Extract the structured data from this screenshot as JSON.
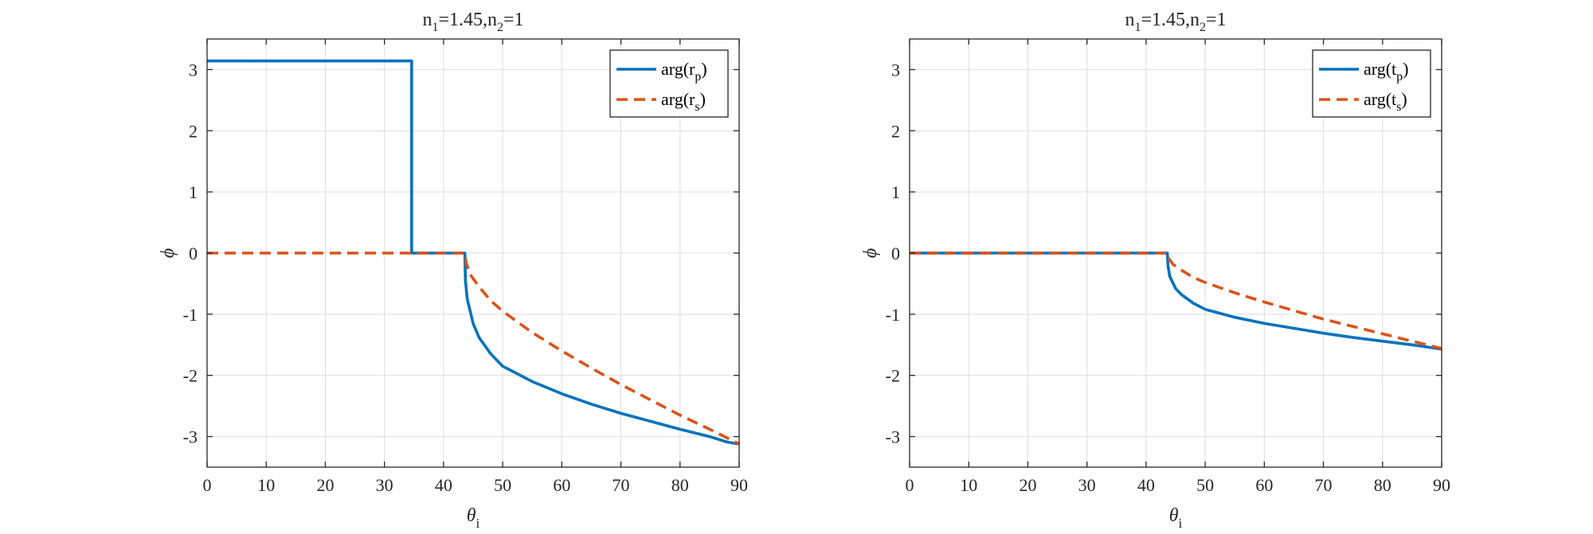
{
  "chart_data": [
    {
      "type": "line",
      "title": "n1=1.45,n2=1",
      "title_parts": {
        "n": "n",
        "sub1": "1",
        "mid": "=1.45,n",
        "sub2": "2",
        "end": "=1"
      },
      "xlabel": {
        "symbol": "θ",
        "subscript": "i"
      },
      "ylabel": "ϕ",
      "xlim": [
        0,
        90
      ],
      "ylim": [
        -3.5,
        3.5
      ],
      "xticks": [
        0,
        10,
        20,
        30,
        40,
        50,
        60,
        70,
        80,
        90
      ],
      "yticks": [
        3,
        2,
        1,
        0,
        -1,
        -2,
        -3
      ],
      "grid": true,
      "legend_position": "top-right",
      "series": [
        {
          "name": "arg(rp)",
          "legend": {
            "main": "arg(r",
            "sub": "p",
            "end": ")"
          },
          "color": "#0072bd",
          "dash": "solid",
          "x": [
            0,
            34.6,
            34.6,
            43.6,
            43.7,
            44.0,
            45.0,
            46.0,
            48.0,
            50.0,
            55.0,
            60.0,
            65.0,
            70.0,
            75.0,
            80.0,
            85.0,
            88.0,
            90.0
          ],
          "y": [
            3.1416,
            3.1416,
            0,
            0,
            -0.45,
            -0.75,
            -1.15,
            -1.38,
            -1.65,
            -1.85,
            -2.1,
            -2.3,
            -2.47,
            -2.62,
            -2.75,
            -2.88,
            -3.0,
            -3.09,
            -3.12
          ]
        },
        {
          "name": "arg(rs)",
          "legend": {
            "main": "arg(r",
            "sub": "s",
            "end": ")"
          },
          "color": "#d95319",
          "dash": "dashed",
          "x": [
            0,
            43.6,
            43.8,
            44.5,
            46.0,
            48.0,
            50.0,
            55.0,
            60.0,
            65.0,
            70.0,
            75.0,
            80.0,
            85.0,
            90.0
          ],
          "y": [
            0,
            0,
            -0.15,
            -0.35,
            -0.55,
            -0.78,
            -0.95,
            -1.3,
            -1.6,
            -1.88,
            -2.15,
            -2.4,
            -2.65,
            -2.88,
            -3.12
          ]
        }
      ]
    },
    {
      "type": "line",
      "title": "n1=1.45,n2=1",
      "title_parts": {
        "n": "n",
        "sub1": "1",
        "mid": "=1.45,n",
        "sub2": "2",
        "end": "=1"
      },
      "xlabel": {
        "symbol": "θ",
        "subscript": "i"
      },
      "ylabel": "ϕ",
      "xlim": [
        0,
        90
      ],
      "ylim": [
        -3.5,
        3.5
      ],
      "xticks": [
        0,
        10,
        20,
        30,
        40,
        50,
        60,
        70,
        80,
        90
      ],
      "yticks": [
        3,
        2,
        1,
        0,
        -1,
        -2,
        -3
      ],
      "grid": true,
      "legend_position": "top-right",
      "series": [
        {
          "name": "arg(tp)",
          "legend": {
            "main": "arg(t",
            "sub": "p",
            "end": ")"
          },
          "color": "#0072bd",
          "dash": "solid",
          "x": [
            0,
            43.6,
            43.7,
            44.0,
            45.0,
            46.0,
            48.0,
            50.0,
            55.0,
            60.0,
            65.0,
            70.0,
            75.0,
            80.0,
            85.0,
            90.0
          ],
          "y": [
            0,
            0,
            -0.2,
            -0.38,
            -0.58,
            -0.68,
            -0.82,
            -0.92,
            -1.05,
            -1.15,
            -1.23,
            -1.31,
            -1.38,
            -1.44,
            -1.5,
            -1.57
          ]
        },
        {
          "name": "arg(ts)",
          "legend": {
            "main": "arg(t",
            "sub": "s",
            "end": ")"
          },
          "color": "#d95319",
          "dash": "dashed",
          "x": [
            0,
            43.6,
            43.8,
            44.5,
            46.0,
            48.0,
            50.0,
            55.0,
            60.0,
            65.0,
            70.0,
            75.0,
            80.0,
            85.0,
            90.0
          ],
          "y": [
            0,
            0,
            -0.08,
            -0.18,
            -0.28,
            -0.4,
            -0.48,
            -0.65,
            -0.8,
            -0.94,
            -1.08,
            -1.2,
            -1.32,
            -1.44,
            -1.56
          ]
        }
      ]
    }
  ]
}
